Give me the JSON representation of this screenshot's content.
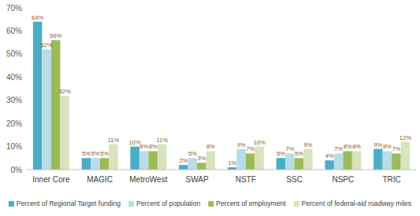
{
  "chart_data": {
    "type": "bar",
    "categories": [
      "Inner Core",
      "MAGIC",
      "MetroWest",
      "SWAP",
      "NSTF",
      "SSC",
      "NSPC",
      "TRIC"
    ],
    "series": [
      {
        "name": "Percent of Regional Target funding",
        "color": "#4bacc6",
        "values": [
          64,
          5,
          10,
          2,
          1,
          5,
          4,
          9
        ],
        "value_labels": [
          "64%",
          "5%",
          "10%",
          "2%",
          "1%",
          "5%",
          "4%",
          "9%"
        ]
      },
      {
        "name": "Percent of population",
        "color": "#b7dde8",
        "values": [
          52,
          5,
          8,
          5,
          9,
          7,
          7,
          8
        ],
        "value_labels": [
          "52%",
          "5%",
          "8%",
          "5%",
          "9%",
          "7%",
          "7%",
          "8%"
        ]
      },
      {
        "name": "Percent of employment",
        "color": "#9bbb59",
        "values": [
          56,
          5,
          8,
          3,
          7,
          5,
          8,
          7
        ],
        "value_labels": [
          "56%",
          "5%",
          "8%",
          "3%",
          "7%",
          "5%",
          "8%",
          "7%"
        ]
      },
      {
        "name": "Percent of federal-aid roadway miles",
        "color": "#d7e4bd",
        "values": [
          32,
          11,
          11,
          8,
          10,
          9,
          8,
          12
        ],
        "value_labels": [
          "32%",
          "11%",
          "11%",
          "8%",
          "10%",
          "9%",
          "8%",
          "12%"
        ]
      }
    ],
    "ylim": [
      0,
      70
    ],
    "yticks": [
      {
        "value": 0,
        "label": "0%"
      },
      {
        "value": 10,
        "label": "10%"
      },
      {
        "value": 20,
        "label": "20%"
      },
      {
        "value": 30,
        "label": "30%"
      },
      {
        "value": 40,
        "label": "40%"
      },
      {
        "value": 50,
        "label": "50%"
      },
      {
        "value": 60,
        "label": "60%"
      },
      {
        "value": 70,
        "label": "70%"
      }
    ],
    "grid": false,
    "legend": "bottom",
    "data_labels": true
  }
}
